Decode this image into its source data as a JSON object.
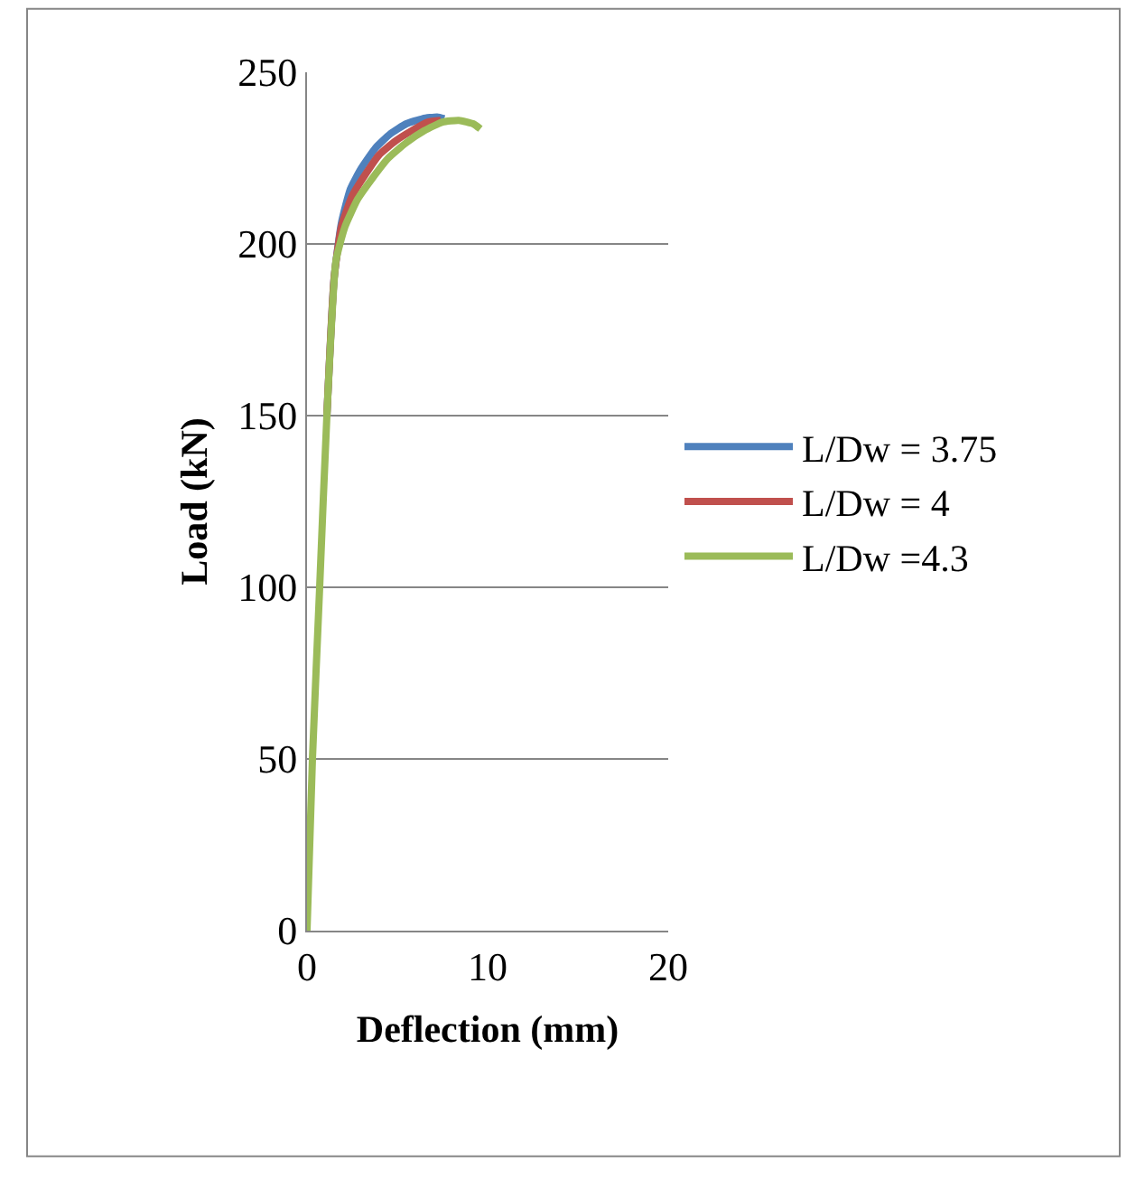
{
  "chart_data": {
    "type": "line",
    "xlabel": "Deflection (mm)",
    "ylabel": "Load (kN)",
    "xlim": [
      0,
      20
    ],
    "xticks": [
      0,
      10,
      20
    ],
    "ylim": [
      0,
      250
    ],
    "yticks": [
      0,
      50,
      100,
      150,
      200,
      250
    ],
    "grid": "y",
    "legend": "right",
    "marker": "none",
    "line_style": "solid",
    "series": [
      {
        "name": "L/Dw = 3.75",
        "color": "#4f81bd",
        "x": [
          1.1,
          1.5,
          1.9,
          2.4,
          3.0,
          3.8,
          4.6,
          5.5,
          6.4,
          7.2,
          7.6
        ],
        "values": [
          150,
          190,
          206,
          216,
          222,
          228,
          232,
          235,
          236.5,
          237,
          236.5
        ]
      },
      {
        "name": "L/Dw = 4",
        "color": "#c0504d",
        "x": [
          1.1,
          1.5,
          1.9,
          2.5,
          3.2,
          4.0,
          4.9,
          5.8,
          6.7,
          7.4
        ],
        "values": [
          150,
          190,
          205,
          214,
          220,
          226,
          230,
          233,
          235.5,
          236
        ]
      },
      {
        "name": "L/Dw =4.3",
        "color": "#9bbb59",
        "x": [
          0,
          0.3,
          0.7,
          1.1,
          1.6,
          2.1,
          2.8,
          3.6,
          4.5,
          5.5,
          6.5,
          7.5,
          8.4,
          9.2,
          9.6
        ],
        "values": [
          0,
          50,
          100,
          150,
          195,
          205,
          213,
          219,
          225,
          229.5,
          233,
          235.5,
          236,
          235,
          233.5
        ]
      }
    ]
  }
}
